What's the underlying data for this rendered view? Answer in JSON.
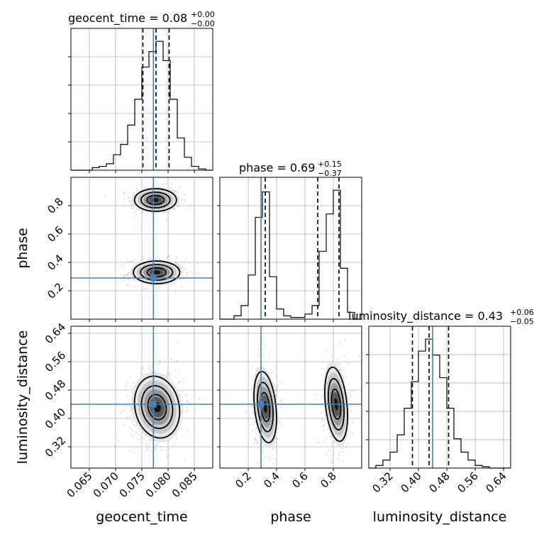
{
  "chart_data": {
    "type": "corner",
    "parameters": [
      {
        "name": "geocent_time",
        "range": [
          0.0615,
          0.0885
        ],
        "truth": 0.0772,
        "ticks": [
          0.065,
          0.07,
          0.075,
          0.08,
          0.085
        ],
        "tick_labels": [
          "0.065",
          "0.070",
          "0.075",
          "0.080",
          "0.085"
        ],
        "title_main": "geocent_time = 0.08",
        "title_plus": "+0.00",
        "title_minus": "−0.00",
        "quantiles": [
          0.0752,
          0.0777,
          0.0802
        ]
      },
      {
        "name": "phase",
        "range": [
          0.0,
          1.0
        ],
        "truth": 0.29,
        "ticks": [
          0.2,
          0.4,
          0.6,
          0.8
        ],
        "tick_labels": [
          "0.2",
          "0.4",
          "0.6",
          "0.8"
        ],
        "title_main": "phase = 0.69",
        "title_plus": "+0.15",
        "title_minus": "−0.37",
        "quantiles": [
          0.32,
          0.69,
          0.84
        ]
      },
      {
        "name": "luminosity_distance",
        "range": [
          0.26,
          0.66
        ],
        "truth": 0.44,
        "ticks": [
          0.32,
          0.4,
          0.48,
          0.56,
          0.64
        ],
        "tick_labels": [
          "0.32",
          "0.40",
          "0.48",
          "0.56",
          "0.64"
        ],
        "title_main": "luminosity_distance = 0.43",
        "title_plus": "+0.06",
        "title_minus": "−0.05",
        "quantiles": [
          0.383,
          0.43,
          0.485
        ]
      }
    ],
    "histograms": [
      {
        "param": "geocent_time",
        "bin_edges": [
          0.0615,
          0.06285,
          0.0642,
          0.06555,
          0.0669,
          0.06825,
          0.0696,
          0.07095,
          0.0723,
          0.07365,
          0.075,
          0.07635,
          0.0777,
          0.07905,
          0.0804,
          0.08175,
          0.0831,
          0.08445,
          0.0858,
          0.08715,
          0.0885
        ],
        "counts": [
          0,
          0,
          0,
          2,
          3,
          5,
          12,
          20,
          35,
          55,
          80,
          92,
          100,
          85,
          55,
          25,
          10,
          3,
          1,
          0
        ]
      },
      {
        "param": "phase",
        "bin_edges": [
          0.0,
          0.05,
          0.1,
          0.15,
          0.2,
          0.25,
          0.3,
          0.35,
          0.4,
          0.45,
          0.5,
          0.55,
          0.6,
          0.65,
          0.7,
          0.75,
          0.8,
          0.85,
          0.9,
          0.95,
          1.0
        ],
        "counts": [
          0,
          0,
          2,
          8,
          26,
          60,
          75,
          25,
          6,
          2,
          1,
          1,
          3,
          8,
          40,
          62,
          76,
          30,
          4,
          0
        ]
      },
      {
        "param": "luminosity_distance",
        "bin_edges": [
          0.26,
          0.28,
          0.3,
          0.32,
          0.34,
          0.36,
          0.38,
          0.4,
          0.42,
          0.44,
          0.46,
          0.48,
          0.5,
          0.52,
          0.54,
          0.56,
          0.58,
          0.6,
          0.62,
          0.64,
          0.66
        ],
        "counts": [
          0,
          2,
          6,
          12,
          25,
          45,
          65,
          88,
          97,
          85,
          68,
          45,
          22,
          12,
          6,
          2,
          1,
          0,
          0,
          0
        ]
      }
    ],
    "density_plots": [
      {
        "x": "geocent_time",
        "y": "phase"
      },
      {
        "x": "geocent_time",
        "y": "luminosity_distance"
      },
      {
        "x": "phase",
        "y": "luminosity_distance"
      }
    ],
    "truth_color": "#4682b4",
    "quantile_linestyle": "dashed",
    "grid": true
  }
}
